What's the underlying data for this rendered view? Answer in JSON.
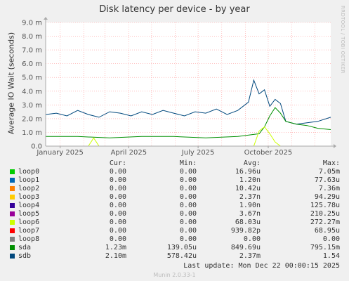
{
  "title": "Disk latency per device - by year",
  "ylabel": "Average IO Wait (seconds)",
  "side_text": "RRDTOOL / TOBI OETIKER",
  "footer": "Munin 2.0.33-1",
  "last_update_label": "Last update:",
  "last_update_value": "Mon Dec 22 00:00:15 2025",
  "legend_headers": {
    "cur": "Cur:",
    "min": "Min:",
    "avg": "Avg:",
    "max": "Max:"
  },
  "legend": [
    {
      "name": "loop0",
      "color": "#00cc00",
      "cur": "0.00",
      "min": "0.00",
      "avg": "16.96u",
      "max": "7.05m"
    },
    {
      "name": "loop1",
      "color": "#0066b3",
      "cur": "0.00",
      "min": "0.00",
      "avg": "1.20n",
      "max": "77.63u"
    },
    {
      "name": "loop2",
      "color": "#ff8000",
      "cur": "0.00",
      "min": "0.00",
      "avg": "10.42u",
      "max": "7.36m"
    },
    {
      "name": "loop3",
      "color": "#ffcc00",
      "cur": "0.00",
      "min": "0.00",
      "avg": "2.37n",
      "max": "94.29u"
    },
    {
      "name": "loop4",
      "color": "#330099",
      "cur": "0.00",
      "min": "0.00",
      "avg": "1.90n",
      "max": "125.78u"
    },
    {
      "name": "loop5",
      "color": "#990099",
      "cur": "0.00",
      "min": "0.00",
      "avg": "3.67n",
      "max": "210.25u"
    },
    {
      "name": "loop6",
      "color": "#ccff00",
      "cur": "0.00",
      "min": "0.00",
      "avg": "68.03u",
      "max": "272.27m"
    },
    {
      "name": "loop7",
      "color": "#ff0000",
      "cur": "0.00",
      "min": "0.00",
      "avg": "939.82p",
      "max": "68.95u"
    },
    {
      "name": "loop8",
      "color": "#808080",
      "cur": "0.00",
      "min": "0.00",
      "avg": "0.00",
      "max": "0.00"
    },
    {
      "name": "sda",
      "color": "#008f00",
      "cur": "1.23m",
      "min": "139.05u",
      "avg": "849.69u",
      "max": "795.15m"
    },
    {
      "name": "sdb",
      "color": "#00487d",
      "cur": "2.10m",
      "min": "578.42u",
      "avg": "2.37m",
      "max": "1.54"
    }
  ],
  "chart_data": {
    "type": "line",
    "title": "Disk latency per device - by year",
    "ylabel": "Average IO Wait (seconds)",
    "ylim": [
      0,
      0.009
    ],
    "y_ticks": [
      {
        "v": 0,
        "label": "0.0"
      },
      {
        "v": 0.001,
        "label": "1.0 m"
      },
      {
        "v": 0.002,
        "label": "2.0 m"
      },
      {
        "v": 0.003,
        "label": "3.0 m"
      },
      {
        "v": 0.004,
        "label": "4.0 m"
      },
      {
        "v": 0.005,
        "label": "5.0 m"
      },
      {
        "v": 0.006,
        "label": "6.0 m"
      },
      {
        "v": 0.007,
        "label": "7.0 m"
      },
      {
        "v": 0.008,
        "label": "8.0 m"
      },
      {
        "v": 0.009,
        "label": "9.0 m"
      }
    ],
    "x_range": [
      "2024-12-13",
      "2025-12-22"
    ],
    "x_ticks": [
      {
        "x": "2025-01-01",
        "label": "January 2025"
      },
      {
        "x": "2025-04-01",
        "label": "April 2025"
      },
      {
        "x": "2025-07-01",
        "label": "July 2025"
      },
      {
        "x": "2025-10-01",
        "label": "October 2025"
      }
    ],
    "grid": true,
    "series": [
      {
        "name": "sdb",
        "color": "#00487d",
        "x": [
          "2024-12-13",
          "2024-12-27",
          "2025-01-10",
          "2025-01-24",
          "2025-02-07",
          "2025-02-21",
          "2025-03-07",
          "2025-03-21",
          "2025-04-04",
          "2025-04-18",
          "2025-05-02",
          "2025-05-16",
          "2025-05-30",
          "2025-06-13",
          "2025-06-27",
          "2025-07-11",
          "2025-07-25",
          "2025-08-08",
          "2025-08-22",
          "2025-09-05",
          "2025-09-12",
          "2025-09-19",
          "2025-09-26",
          "2025-10-03",
          "2025-10-10",
          "2025-10-17",
          "2025-10-24",
          "2025-11-07",
          "2025-11-21",
          "2025-12-05",
          "2025-12-22"
        ],
        "values": [
          0.0023,
          0.0024,
          0.0022,
          0.0026,
          0.0023,
          0.0021,
          0.0025,
          0.0024,
          0.0022,
          0.0025,
          0.0023,
          0.0026,
          0.0024,
          0.0022,
          0.0025,
          0.0024,
          0.0027,
          0.0023,
          0.0026,
          0.0032,
          0.0048,
          0.0038,
          0.0041,
          0.0029,
          0.0034,
          0.0031,
          0.0018,
          0.0016,
          0.0017,
          0.0018,
          0.0021
        ]
      },
      {
        "name": "sda",
        "color": "#008f00",
        "x": [
          "2024-12-13",
          "2025-01-24",
          "2025-03-07",
          "2025-04-18",
          "2025-05-30",
          "2025-07-11",
          "2025-08-22",
          "2025-09-19",
          "2025-09-26",
          "2025-10-03",
          "2025-10-10",
          "2025-10-17",
          "2025-10-24",
          "2025-11-07",
          "2025-11-21",
          "2025-12-05",
          "2025-12-22"
        ],
        "values": [
          0.0007,
          0.0007,
          0.0006,
          0.0007,
          0.0007,
          0.0006,
          0.0007,
          0.0009,
          0.0014,
          0.0022,
          0.0028,
          0.0024,
          0.0018,
          0.0016,
          0.0015,
          0.0013,
          0.0012
        ]
      },
      {
        "name": "loop6",
        "color": "#ccff00",
        "x": [
          "2024-12-13",
          "2025-02-07",
          "2025-02-14",
          "2025-02-21",
          "2025-09-12",
          "2025-09-19",
          "2025-09-26",
          "2025-10-03",
          "2025-10-10",
          "2025-10-17",
          "2025-12-22"
        ],
        "values": [
          0,
          0,
          0.0006,
          0,
          0,
          0.0011,
          0.0014,
          0.0009,
          0.0003,
          0,
          0
        ]
      }
    ]
  }
}
